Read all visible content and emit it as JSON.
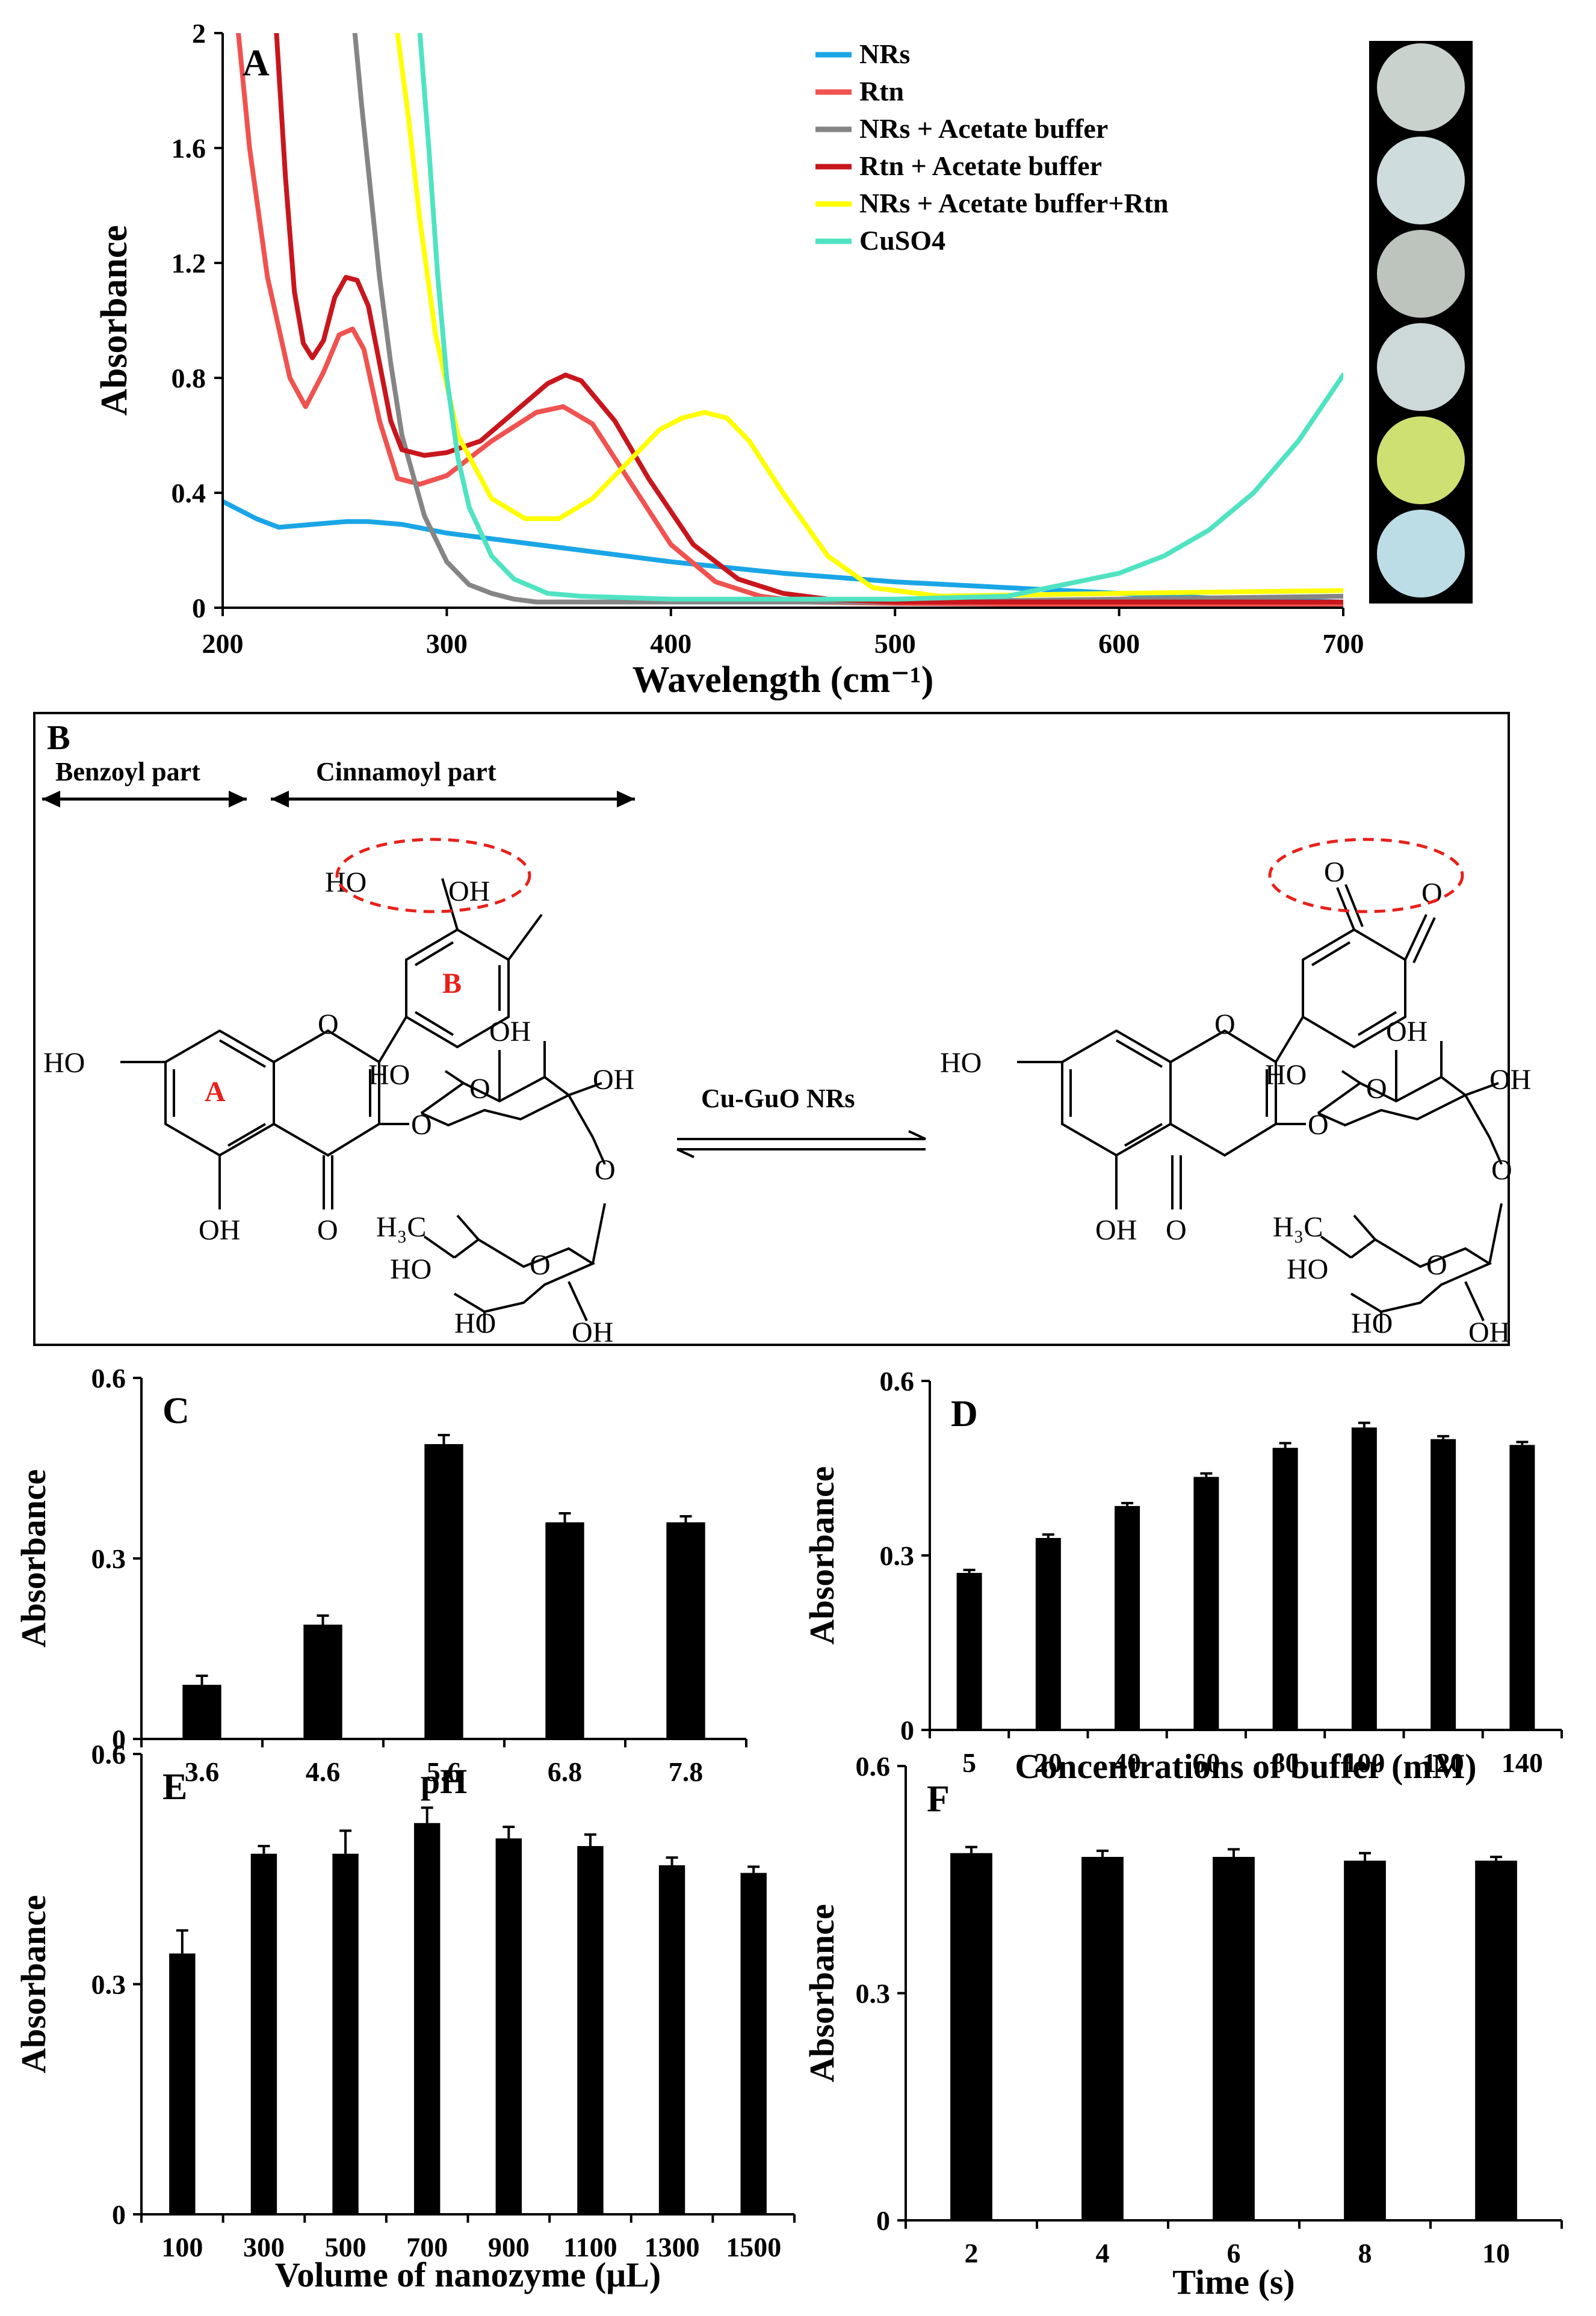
{
  "panels": {
    "A": "A",
    "B": "B",
    "C": "C",
    "D": "D",
    "E": "E",
    "F": "F"
  },
  "scheme": {
    "benzoyl": "Benzoyl part",
    "cinnamoyl": "Cinnamoyl part",
    "catalyst": "Cu-GuO NRs",
    "ring_a": "A",
    "ring_b": "B",
    "labels": {
      "ho": "HO",
      "oh": "OH",
      "o": "O",
      "h3c": "H₃C"
    },
    "colors": {
      "highlight": "#e8201a",
      "ink": "#000000"
    }
  },
  "chart_data": [
    {
      "id": "A",
      "type": "line",
      "title": "",
      "xlabel": "Wavelength (cm⁻¹)",
      "ylabel": "Absorbance",
      "xlim": [
        200,
        700
      ],
      "ylim": [
        0,
        2
      ],
      "xticks": [
        200,
        300,
        400,
        500,
        600,
        700
      ],
      "yticks": [
        0,
        0.4,
        0.8,
        1.2,
        1.6,
        2
      ],
      "ytick_labels": [
        "0",
        "0.4",
        "0.8",
        "1.2",
        "1.6",
        "2"
      ],
      "legend_position": "top-center",
      "series": [
        {
          "name": "NRs",
          "color": "#1aa6e6",
          "x": [
            200,
            215,
            225,
            240,
            255,
            265,
            280,
            300,
            330,
            360,
            400,
            450,
            500,
            550,
            600,
            650,
            700
          ],
          "y": [
            0.37,
            0.31,
            0.28,
            0.29,
            0.3,
            0.3,
            0.29,
            0.26,
            0.23,
            0.2,
            0.16,
            0.12,
            0.09,
            0.07,
            0.05,
            0.03,
            0.02
          ]
        },
        {
          "name": "Rtn",
          "color": "#f0524f",
          "x": [
            207,
            212,
            220,
            230,
            237,
            245,
            252,
            258,
            263,
            270,
            278,
            288,
            300,
            320,
            340,
            352,
            365,
            380,
            400,
            420,
            440,
            460,
            500,
            600,
            700
          ],
          "y": [
            2.0,
            1.6,
            1.15,
            0.8,
            0.7,
            0.82,
            0.95,
            0.97,
            0.9,
            0.65,
            0.45,
            0.43,
            0.46,
            0.58,
            0.68,
            0.7,
            0.64,
            0.46,
            0.22,
            0.09,
            0.04,
            0.02,
            0.015,
            0.01,
            0.01
          ]
        },
        {
          "name": "NRs + Acetate buffer",
          "color": "#858585",
          "x": [
            259,
            262,
            266,
            270,
            275,
            280,
            290,
            300,
            310,
            320,
            330,
            340,
            360,
            400,
            500,
            600,
            700
          ],
          "y": [
            2.0,
            1.75,
            1.45,
            1.15,
            0.85,
            0.6,
            0.32,
            0.16,
            0.08,
            0.05,
            0.03,
            0.02,
            0.02,
            0.02,
            0.02,
            0.03,
            0.04
          ]
        },
        {
          "name": "Rtn + Acetate buffer",
          "color": "#c8161d",
          "x": [
            224,
            228,
            232,
            236,
            240,
            245,
            250,
            255,
            260,
            265,
            270,
            275,
            280,
            290,
            300,
            315,
            330,
            345,
            353,
            360,
            375,
            390,
            410,
            430,
            450,
            470,
            500,
            600,
            700
          ],
          "y": [
            2.0,
            1.5,
            1.1,
            0.92,
            0.87,
            0.93,
            1.08,
            1.15,
            1.14,
            1.05,
            0.85,
            0.65,
            0.55,
            0.53,
            0.54,
            0.58,
            0.68,
            0.78,
            0.81,
            0.79,
            0.65,
            0.45,
            0.22,
            0.1,
            0.05,
            0.03,
            0.02,
            0.02,
            0.02
          ]
        },
        {
          "name": "NRs + Acetate buffer+Rtn",
          "color": "#ffff00",
          "x": [
            278,
            283,
            288,
            295,
            305,
            320,
            335,
            350,
            365,
            380,
            395,
            405,
            415,
            425,
            435,
            450,
            470,
            490,
            520,
            600,
            700
          ],
          "y": [
            2.0,
            1.7,
            1.35,
            0.95,
            0.6,
            0.38,
            0.31,
            0.31,
            0.38,
            0.5,
            0.62,
            0.66,
            0.68,
            0.66,
            0.58,
            0.4,
            0.18,
            0.07,
            0.04,
            0.05,
            0.06
          ]
        },
        {
          "name": "CuSO4",
          "color": "#50e3c2",
          "x": [
            288,
            292,
            296,
            300,
            305,
            310,
            320,
            330,
            345,
            360,
            400,
            450,
            500,
            550,
            600,
            620,
            640,
            660,
            680,
            700
          ],
          "y": [
            2.0,
            1.6,
            1.15,
            0.8,
            0.52,
            0.35,
            0.18,
            0.1,
            0.05,
            0.04,
            0.03,
            0.03,
            0.03,
            0.04,
            0.12,
            0.18,
            0.27,
            0.4,
            0.58,
            0.81
          ]
        }
      ],
      "vial_colors": [
        "#c9d2cd",
        "#cfdcde",
        "#bcc4bd",
        "#cdd8d9",
        "#cfe073",
        "#bddde6"
      ]
    },
    {
      "id": "C",
      "type": "bar",
      "title": "",
      "xlabel": "pH",
      "ylabel": "Absorbance",
      "ylim": [
        0,
        0.6
      ],
      "yticks": [
        0,
        0.3,
        0.6
      ],
      "categories": [
        "3.6",
        "4.6",
        "5.6",
        "6.8",
        "7.8"
      ],
      "values": [
        0.09,
        0.19,
        0.49,
        0.36,
        0.36
      ],
      "errors": [
        0.015,
        0.015,
        0.015,
        0.015,
        0.01
      ]
    },
    {
      "id": "D",
      "type": "bar",
      "title": "",
      "xlabel": "Concentrations of buffer (mM)",
      "ylabel": "Absorbance",
      "ylim": [
        0,
        0.6
      ],
      "yticks": [
        0,
        0.3,
        0.6
      ],
      "categories": [
        "5",
        "20",
        "40",
        "60",
        "80",
        "100",
        "120",
        "140"
      ],
      "values": [
        0.27,
        0.33,
        0.385,
        0.435,
        0.485,
        0.52,
        0.5,
        0.49
      ],
      "errors": [
        0.005,
        0.006,
        0.005,
        0.006,
        0.008,
        0.008,
        0.005,
        0.005
      ]
    },
    {
      "id": "E",
      "type": "bar",
      "title": "",
      "xlabel": "Volume of nanozyme (μL)",
      "ylabel": "Absorbance",
      "ylim": [
        0,
        0.6
      ],
      "yticks": [
        0,
        0.3,
        0.6
      ],
      "categories": [
        "100",
        "300",
        "500",
        "700",
        "900",
        "1100",
        "1300",
        "1500"
      ],
      "values": [
        0.34,
        0.47,
        0.47,
        0.51,
        0.49,
        0.48,
        0.455,
        0.445
      ],
      "errors": [
        0.03,
        0.01,
        0.03,
        0.02,
        0.015,
        0.015,
        0.01,
        0.008
      ]
    },
    {
      "id": "F",
      "type": "bar",
      "title": "",
      "xlabel": "Time (s)",
      "ylabel": "Absorbance",
      "ylim": [
        0,
        0.6
      ],
      "yticks": [
        0,
        0.3,
        0.6
      ],
      "categories": [
        "2",
        "4",
        "6",
        "8",
        "10"
      ],
      "values": [
        0.485,
        0.48,
        0.48,
        0.475,
        0.475
      ],
      "errors": [
        0.008,
        0.008,
        0.01,
        0.01,
        0.005
      ]
    }
  ]
}
